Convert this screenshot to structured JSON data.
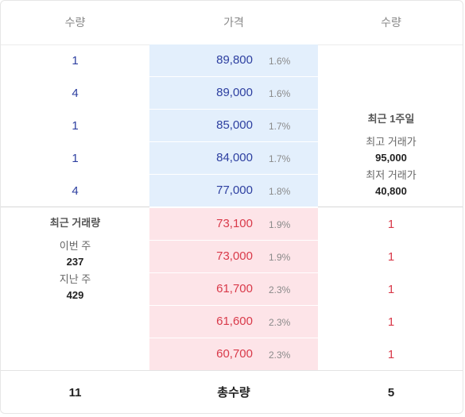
{
  "header": {
    "left_label": "수량",
    "mid_label": "가격",
    "right_label": "수량"
  },
  "sell_orders": [
    {
      "qty": "1",
      "price": "89,800",
      "pct": "1.6%"
    },
    {
      "qty": "4",
      "price": "89,000",
      "pct": "1.6%"
    },
    {
      "qty": "1",
      "price": "85,000",
      "pct": "1.7%"
    },
    {
      "qty": "1",
      "price": "84,000",
      "pct": "1.7%"
    },
    {
      "qty": "4",
      "price": "77,000",
      "pct": "1.8%"
    }
  ],
  "buy_orders": [
    {
      "qty": "1",
      "price": "73,100",
      "pct": "1.9%"
    },
    {
      "qty": "1",
      "price": "73,000",
      "pct": "1.9%"
    },
    {
      "qty": "1",
      "price": "61,700",
      "pct": "2.3%"
    },
    {
      "qty": "1",
      "price": "61,600",
      "pct": "2.3%"
    },
    {
      "qty": "1",
      "price": "60,700",
      "pct": "2.3%"
    }
  ],
  "weekly_info": {
    "title": "최근 1주일",
    "high_label": "최고 거래가",
    "high_value": "95,000",
    "low_label": "최저 거래가",
    "low_value": "40,800"
  },
  "volume_info": {
    "title": "최근 거래량",
    "this_week_label": "이번 주",
    "this_week_value": "237",
    "last_week_label": "지난 주",
    "last_week_value": "429"
  },
  "footer": {
    "left_total": "11",
    "mid_label": "총수량",
    "right_total": "5"
  },
  "colors": {
    "sell_text": "#2d3fa0",
    "buy_text": "#d93a4a",
    "sell_bg": "#e3effc",
    "buy_bg": "#fde4e8"
  }
}
